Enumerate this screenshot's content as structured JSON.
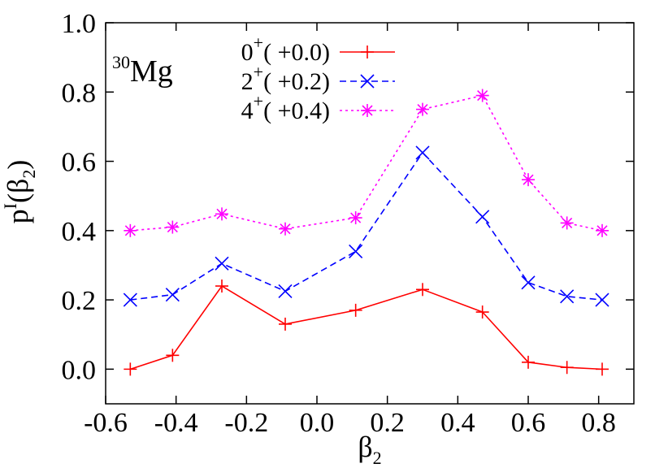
{
  "chart_data": {
    "type": "line",
    "title": "",
    "annotation": {
      "mass_number": "30",
      "symbol": "Mg"
    },
    "xlabel": {
      "base": "β",
      "sub": "2"
    },
    "ylabel": {
      "base": "p",
      "sup": "I",
      "paren_open": "(",
      "arg": "β",
      "arg_sub": "2",
      "paren_close": ")"
    },
    "xlim": [
      -0.6,
      0.9
    ],
    "ylim": [
      -0.1,
      1.0
    ],
    "xticks": [
      -0.6,
      -0.4,
      -0.2,
      0.0,
      0.2,
      0.4,
      0.6,
      0.8
    ],
    "xtick_labels": [
      "-0.6",
      "-0.4",
      "-0.2",
      "0.0",
      "0.2",
      "0.4",
      "0.6",
      "0.8"
    ],
    "yticks": [
      0.0,
      0.2,
      0.4,
      0.6,
      0.8,
      1.0
    ],
    "ytick_labels": [
      "0.0",
      "0.2",
      "0.4",
      "0.6",
      "0.8",
      "1.0"
    ],
    "legend_position": "top-left",
    "x": [
      -0.53,
      -0.41,
      -0.27,
      -0.09,
      0.11,
      0.3,
      0.47,
      0.6,
      0.71,
      0.81
    ],
    "series": [
      {
        "spin": "0",
        "parity": "+",
        "shift": "( +0.0)",
        "color": "#ff0000",
        "marker": "plus",
        "dash": "solid",
        "values": [
          0.0,
          0.04,
          0.24,
          0.13,
          0.17,
          0.23,
          0.165,
          0.02,
          0.005,
          0.0
        ]
      },
      {
        "spin": "2",
        "parity": "+",
        "shift": "( +0.2)",
        "color": "#0000ff",
        "marker": "cross",
        "dash": "dashed",
        "values": [
          0.2,
          0.215,
          0.305,
          0.225,
          0.34,
          0.625,
          0.44,
          0.25,
          0.21,
          0.2
        ]
      },
      {
        "spin": "4",
        "parity": "+",
        "shift": "( +0.4)",
        "color": "#ff00ff",
        "marker": "star",
        "dash": "dotted",
        "values": [
          0.4,
          0.41,
          0.448,
          0.405,
          0.437,
          0.75,
          0.79,
          0.547,
          0.422,
          0.4
        ]
      }
    ]
  }
}
